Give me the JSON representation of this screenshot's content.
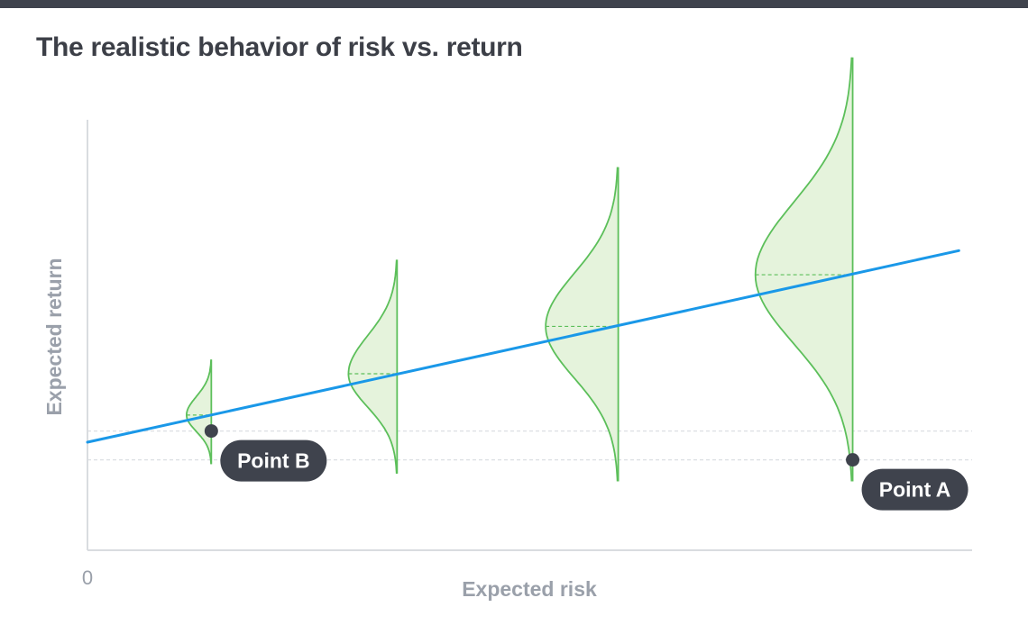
{
  "title": "The realistic behavior of risk vs. return",
  "colors": {
    "topbar": "#3f434d",
    "trend_line": "#1a98e8",
    "distribution_stroke": "#5cbf5a",
    "distribution_fill": "#e5f3dc",
    "axis": "#d9dce0",
    "label_text": "#9aa0aa",
    "marker": "#3f434d"
  },
  "chart_data": {
    "type": "line",
    "title": "The realistic behavior of risk vs. return",
    "xlabel": "Expected risk",
    "ylabel": "Expected return",
    "origin_label": "0",
    "xlim": [
      0,
      10
    ],
    "ylim": [
      0,
      10
    ],
    "grid": false,
    "trend_line": {
      "x": [
        0,
        9.85
      ],
      "y": [
        2.51,
        6.96
      ]
    },
    "distributions": [
      {
        "x": 1.4,
        "mean": 3.14,
        "y_min": 2.0,
        "y_max": 4.43,
        "width": 0.28
      },
      {
        "x": 3.5,
        "mean": 4.1,
        "y_min": 1.78,
        "y_max": 6.75,
        "width": 0.55
      },
      {
        "x": 6.0,
        "mean": 5.2,
        "y_min": 1.6,
        "y_max": 8.9,
        "width": 0.82
      },
      {
        "x": 8.65,
        "mean": 6.4,
        "y_min": 1.6,
        "y_max": 11.45,
        "width": 1.1
      }
    ],
    "points": [
      {
        "label": "Point B",
        "x": 1.4,
        "y": 2.77
      },
      {
        "label": "Point A",
        "x": 8.65,
        "y": 2.1
      }
    ]
  }
}
